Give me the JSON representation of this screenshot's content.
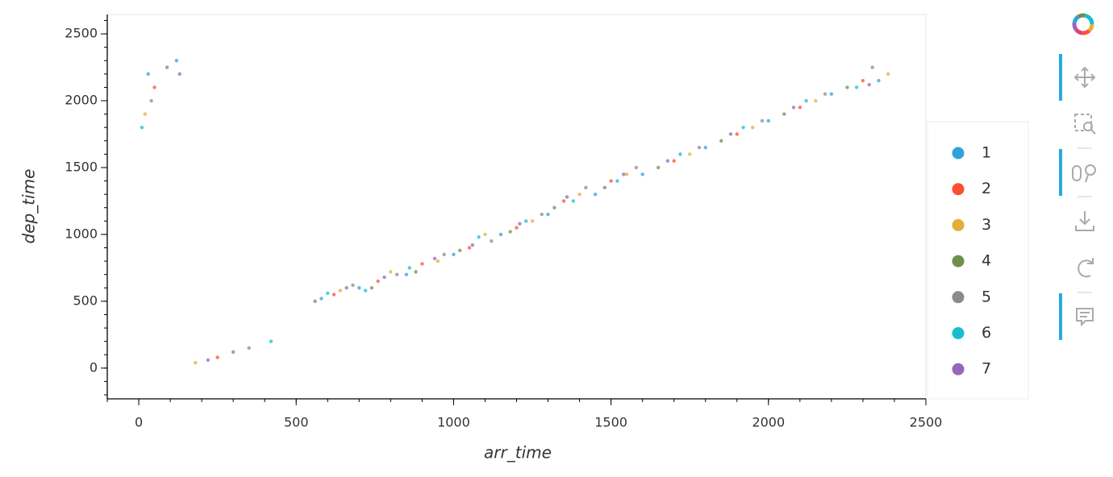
{
  "chart_data": {
    "type": "scatter",
    "x_label": "arr_time",
    "y_label": "dep_time",
    "xlim": [
      -100,
      2500
    ],
    "ylim": [
      -230,
      2645
    ],
    "xticks": [
      0,
      500,
      1000,
      1500,
      2000,
      2500
    ],
    "yticks": [
      0,
      500,
      1000,
      1500,
      2000,
      2500
    ],
    "series": [
      {
        "name": "1",
        "color": "#30a2da",
        "x": [
          30,
          120,
          580,
          700,
          850,
          1000,
          1150,
          1300,
          1450,
          1600,
          1800,
          2000,
          2200,
          2350
        ],
        "values": [
          2200,
          2300,
          520,
          600,
          700,
          850,
          1000,
          1150,
          1300,
          1450,
          1650,
          1850,
          2050,
          2150
        ]
      },
      {
        "name": "2",
        "color": "#fc4f30",
        "x": [
          50,
          250,
          620,
          760,
          900,
          1050,
          1200,
          1350,
          1500,
          1700,
          1900,
          2100,
          2300
        ],
        "values": [
          2100,
          80,
          550,
          650,
          780,
          900,
          1050,
          1250,
          1400,
          1550,
          1750,
          1950,
          2150
        ]
      },
      {
        "name": "3",
        "color": "#e5ae38",
        "x": [
          20,
          180,
          640,
          800,
          950,
          1100,
          1250,
          1400,
          1550,
          1750,
          1950,
          2150,
          2380
        ],
        "values": [
          1900,
          40,
          580,
          720,
          800,
          1000,
          1100,
          1300,
          1450,
          1600,
          1800,
          2000,
          2200
        ]
      },
      {
        "name": "4",
        "color": "#6d904f",
        "x": [
          90,
          300,
          560,
          740,
          880,
          1020,
          1180,
          1320,
          1480,
          1650,
          1850,
          2050,
          2250
        ],
        "values": [
          2250,
          120,
          500,
          600,
          720,
          880,
          1020,
          1200,
          1350,
          1500,
          1700,
          1900,
          2100
        ]
      },
      {
        "name": "5",
        "color": "#8b8b8b",
        "x": [
          40,
          350,
          680,
          820,
          970,
          1120,
          1280,
          1420,
          1580,
          1780,
          1980,
          2180,
          2330
        ],
        "values": [
          2000,
          150,
          620,
          700,
          850,
          950,
          1150,
          1350,
          1500,
          1650,
          1850,
          2050,
          2250
        ]
      },
      {
        "name": "6",
        "color": "#17becf",
        "x": [
          10,
          420,
          600,
          720,
          860,
          1080,
          1230,
          1380,
          1520,
          1720,
          1920,
          2120,
          2280
        ],
        "values": [
          1800,
          200,
          560,
          580,
          750,
          980,
          1100,
          1250,
          1400,
          1600,
          1800,
          2000,
          2100
        ]
      },
      {
        "name": "7",
        "color": "#9467bd",
        "x": [
          130,
          220,
          660,
          780,
          940,
          1060,
          1210,
          1360,
          1540,
          1680,
          1880,
          2080,
          2320
        ],
        "values": [
          2200,
          60,
          600,
          680,
          820,
          920,
          1080,
          1280,
          1450,
          1550,
          1750,
          1950,
          2120
        ]
      }
    ]
  }
}
